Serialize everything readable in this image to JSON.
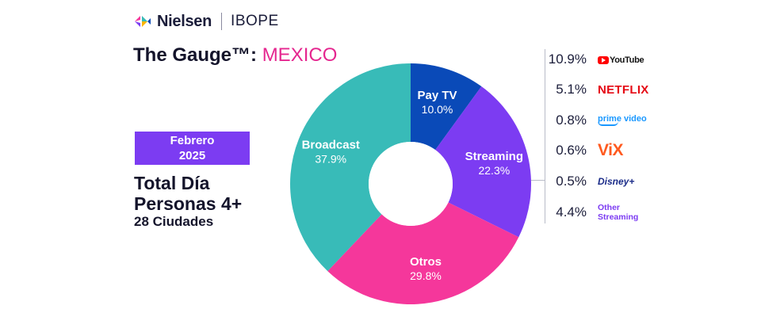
{
  "header": {
    "brand": "Nielsen",
    "partner": "IBOPE",
    "title_main": "The Gauge™: ",
    "title_country": "MEXICO"
  },
  "sidebar": {
    "period_month": "Febrero",
    "period_year": "2025",
    "subtitle_line1": "Total Día",
    "subtitle_line2": "Personas 4+",
    "cities": "28 Ciudades"
  },
  "colors": {
    "pay_tv": "#0a4ab8",
    "streaming": "#7c3cf2",
    "otros": "#f5379b",
    "broadcast": "#38bbb8",
    "accent": "#e5268f",
    "badge": "#7c3cf2"
  },
  "chart_data": {
    "type": "pie",
    "subtype": "donut",
    "title": "The Gauge™: MEXICO",
    "slices": [
      {
        "label": "Pay TV",
        "value": 10.0,
        "value_label": "10.0%",
        "color": "#0a4ab8"
      },
      {
        "label": "Streaming",
        "value": 22.3,
        "value_label": "22.3%",
        "color": "#7c3cf2"
      },
      {
        "label": "Otros",
        "value": 29.8,
        "value_label": "29.8%",
        "color": "#f5379b"
      },
      {
        "label": "Broadcast",
        "value": 37.9,
        "value_label": "37.9%",
        "color": "#38bbb8"
      }
    ],
    "streaming_breakdown": [
      {
        "service": "YouTube",
        "value": 10.9,
        "value_label": "10.9%"
      },
      {
        "service": "NETFLIX",
        "value": 5.1,
        "value_label": "5.1%"
      },
      {
        "service": "prime video",
        "value": 0.8,
        "value_label": "0.8%"
      },
      {
        "service": "ViX",
        "value": 0.6,
        "value_label": "0.6%"
      },
      {
        "service": "Disney+",
        "value": 0.5,
        "value_label": "0.5%"
      },
      {
        "service": "Other Streaming",
        "value": 4.4,
        "value_label": "4.4%"
      }
    ]
  },
  "logos": {
    "youtube": "YouTube",
    "netflix": "NETFLIX",
    "prime": "prime video",
    "vix": "ViX",
    "disney": "Disney+",
    "other_line1": "Other",
    "other_line2": "Streaming"
  }
}
